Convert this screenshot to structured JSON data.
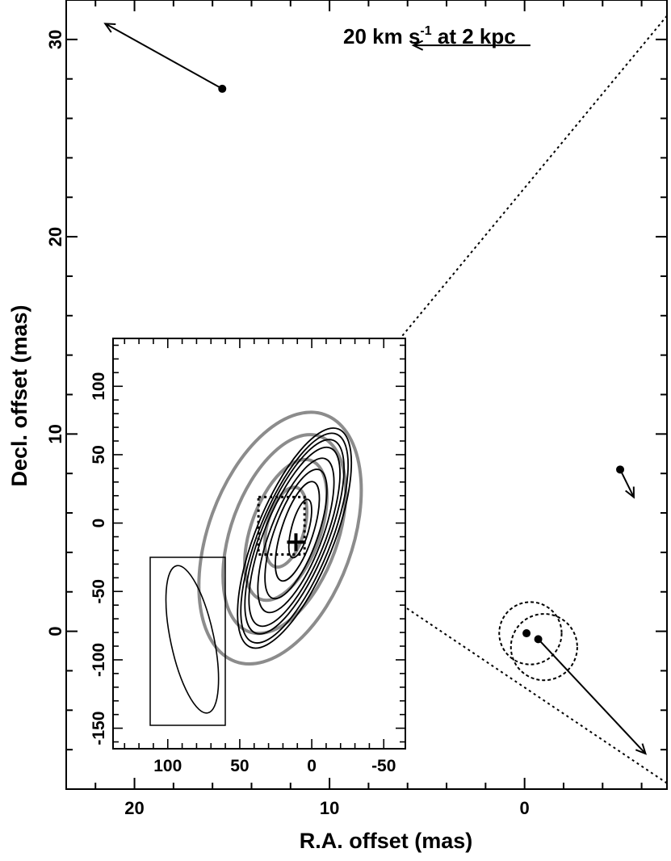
{
  "chart_data": [
    {
      "type": "scatter",
      "title": "",
      "xlabel": "R.A. offset (mas)",
      "ylabel": "Decl. offset (mas)",
      "xlim": [
        23.5,
        -7.3
      ],
      "ylim": [
        -8,
        32
      ],
      "x_ticks": [
        20,
        10,
        0
      ],
      "y_ticks": [
        0,
        10,
        20,
        30
      ],
      "grid": false,
      "annotation": {
        "text": "20 km s",
        "superscript": "-1",
        "suffix": " at 2 kpc",
        "arrow_from": [
          -0.3,
          29.7
        ],
        "arrow_to": [
          5.7,
          29.7
        ]
      },
      "points": [
        {
          "x": 15.5,
          "y": 27.5,
          "vx": 6.0,
          "vy": 3.3
        },
        {
          "x": -4.9,
          "y": 8.2,
          "vx": -0.7,
          "vy": -1.4
        },
        {
          "x": -0.1,
          "y": -0.1,
          "vx": 0,
          "vy": 0
        },
        {
          "x": -0.7,
          "y": -0.4,
          "vx": -5.5,
          "vy": -5.8
        }
      ],
      "dashed_circles": [
        {
          "cx": -0.3,
          "cy": -0.1,
          "r": 1.6
        },
        {
          "cx": -1.0,
          "cy": -0.8,
          "r": 1.7
        }
      ],
      "dotted_lines": [
        {
          "from": [
            -7.3,
            31.2
          ],
          "to": [
            10.6,
            9.8
          ]
        },
        {
          "from": [
            10.6,
            4.2
          ],
          "to": [
            -7.3,
            -7.7
          ]
        }
      ]
    },
    {
      "type": "contour",
      "inset": true,
      "xlim": [
        138,
        -65
      ],
      "ylim": [
        -165,
        135
      ],
      "x_ticks": [
        100,
        50,
        0,
        -50
      ],
      "y_ticks": [
        100,
        50,
        0,
        -50,
        -100,
        -150
      ],
      "beam": {
        "cx": 83,
        "cy": -85,
        "rx": 15,
        "ry": 55,
        "angle_deg": 12
      },
      "cross": {
        "x": 11,
        "y": -14
      },
      "dotted_box": {
        "x1": 37,
        "y1": 19,
        "x2": 5,
        "y2": -23
      },
      "black_contours": [
        {
          "rx": 27,
          "ry": 86,
          "cx": 12,
          "cy": -11,
          "angle_deg": 22
        },
        {
          "rx": 25,
          "ry": 82,
          "cx": 12,
          "cy": -11,
          "angle_deg": 22
        },
        {
          "rx": 23,
          "ry": 76,
          "cx": 12,
          "cy": -10,
          "angle_deg": 22
        },
        {
          "rx": 21,
          "ry": 70,
          "cx": 12,
          "cy": -10,
          "angle_deg": 22
        },
        {
          "rx": 18,
          "ry": 60,
          "cx": 11,
          "cy": -9,
          "angle_deg": 21
        },
        {
          "rx": 15,
          "ry": 50,
          "cx": 11,
          "cy": -8,
          "angle_deg": 20
        },
        {
          "rx": 11,
          "ry": 38,
          "cx": 10,
          "cy": -6,
          "angle_deg": 18
        },
        {
          "rx": 6,
          "ry": 22,
          "cx": 8,
          "cy": -4,
          "angle_deg": 15
        }
      ],
      "gray_contours": [
        {
          "rx": 50,
          "ry": 96,
          "cx": 22,
          "cy": -11,
          "angle_deg": 20
        },
        {
          "rx": 37,
          "ry": 76,
          "cx": 19,
          "cy": -8,
          "angle_deg": 20
        },
        {
          "rx": 24,
          "ry": 54,
          "cx": 18,
          "cy": -5,
          "angle_deg": 20
        },
        {
          "rx": 13,
          "ry": 30,
          "cx": 18,
          "cy": -3,
          "angle_deg": 15
        }
      ]
    }
  ]
}
